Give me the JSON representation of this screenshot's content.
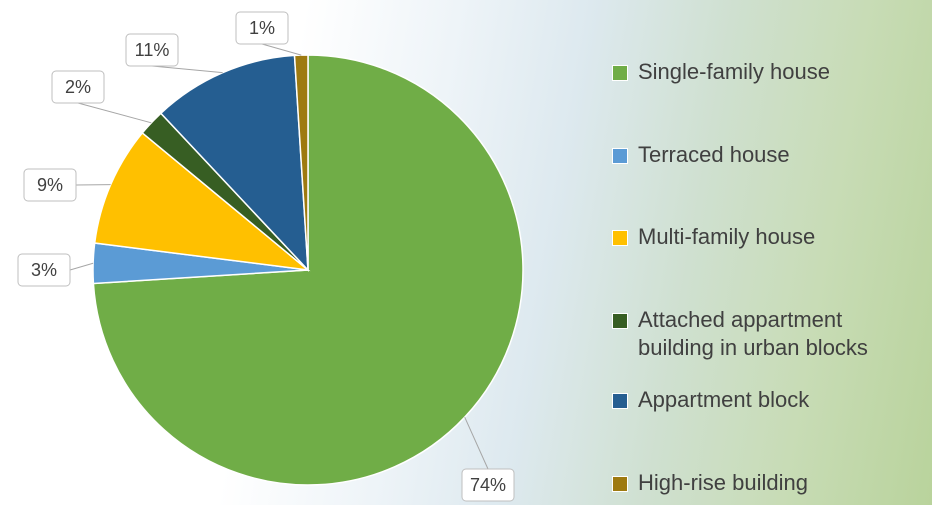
{
  "chart_data": {
    "type": "pie",
    "categories": [
      "Single-family house",
      "Terraced house",
      "Multi-family house",
      "Attached appartment building in urban blocks",
      "Appartment block",
      "High-rise building"
    ],
    "values": [
      74,
      3,
      9,
      2,
      11,
      1
    ],
    "value_labels": [
      "74%",
      "3%",
      "9%",
      "2%",
      "11%",
      "1%"
    ],
    "colors": [
      "#70ad47",
      "#5b9bd5",
      "#ffc000",
      "#375e23",
      "#255e91",
      "#9e7a10"
    ]
  }
}
